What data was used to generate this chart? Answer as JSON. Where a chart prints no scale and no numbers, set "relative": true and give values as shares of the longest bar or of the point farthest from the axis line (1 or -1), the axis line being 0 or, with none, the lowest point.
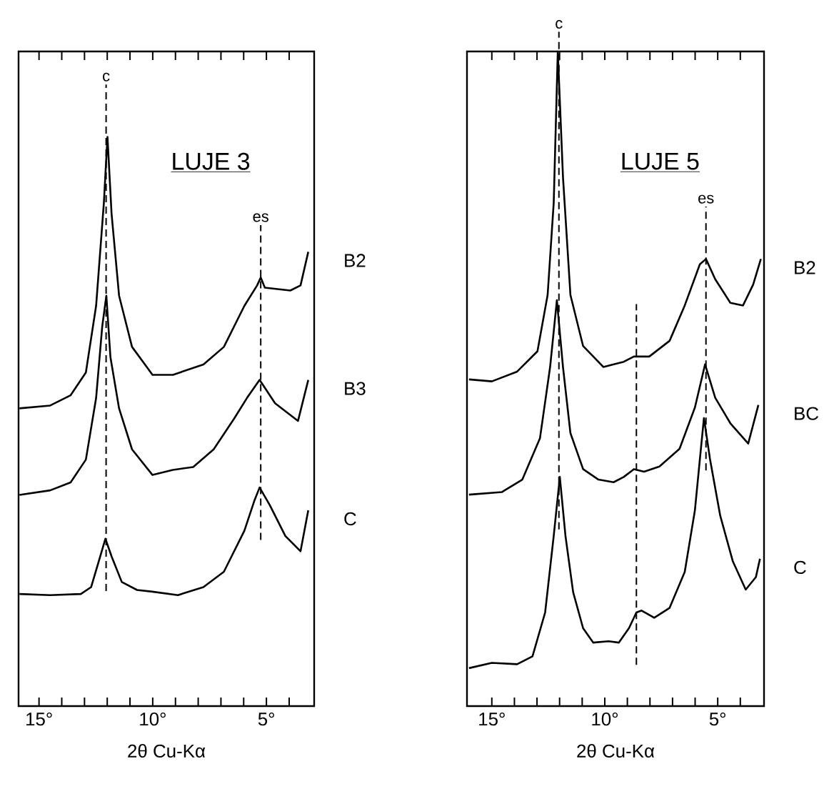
{
  "chart_data": [
    {
      "type": "line",
      "title": "LUJE 3",
      "xlabel": "2θ Cu-Kα",
      "relative": true,
      "tick_labels": "x",
      "xlim": [
        15.9,
        2.9
      ],
      "xticks": [
        {
          "value": 15,
          "label": "15°"
        },
        {
          "value": 14,
          "label": null
        },
        {
          "value": 13,
          "label": null
        },
        {
          "value": 12,
          "label": null
        },
        {
          "value": 11,
          "label": null
        },
        {
          "value": 10,
          "label": "10°"
        },
        {
          "value": 9,
          "label": null
        },
        {
          "value": 8,
          "label": null
        },
        {
          "value": 7,
          "label": null
        },
        {
          "value": 6,
          "label": null
        },
        {
          "value": 5,
          "label": "5°"
        },
        {
          "value": 4,
          "label": null
        }
      ],
      "ref_lines": [
        {
          "axis": "x",
          "value": 12.05,
          "label": "c",
          "line_style": "dashed"
        },
        {
          "axis": "x",
          "value": 5.25,
          "label": "es",
          "line_style": "dashed"
        }
      ],
      "series": [
        {
          "name": "B2",
          "color": "#000000",
          "x": [
            15.86,
            14.51,
            13.61,
            12.94,
            12.49,
            12.15,
            11.99,
            11.81,
            11.48,
            10.91,
            10.01,
            9.11,
            7.77,
            6.87,
            5.97,
            5.41,
            5.25,
            5.07,
            3.95,
            3.5,
            3.16
          ],
          "values": [
            0.523,
            0.528,
            0.546,
            0.586,
            0.703,
            0.883,
            1.0,
            0.865,
            0.721,
            0.631,
            0.582,
            0.582,
            0.6,
            0.631,
            0.703,
            0.739,
            0.753,
            0.735,
            0.73,
            0.739,
            0.798
          ]
        },
        {
          "name": "B3",
          "color": "#000000",
          "x": [
            15.86,
            14.51,
            13.61,
            12.94,
            12.49,
            12.22,
            12.04,
            11.86,
            11.48,
            10.91,
            10.01,
            9.11,
            8.22,
            7.32,
            6.42,
            5.86,
            5.3,
            4.62,
            3.61,
            3.16
          ],
          "values": [
            0.371,
            0.379,
            0.393,
            0.433,
            0.541,
            0.667,
            0.721,
            0.613,
            0.523,
            0.451,
            0.406,
            0.415,
            0.42,
            0.451,
            0.505,
            0.541,
            0.573,
            0.532,
            0.501,
            0.573
          ]
        },
        {
          "name": "C",
          "color": "#000000",
          "x": [
            15.86,
            14.51,
            13.16,
            12.71,
            12.31,
            12.08,
            11.81,
            11.36,
            10.69,
            10.02,
            8.89,
            7.77,
            6.87,
            5.97,
            5.52,
            5.3,
            4.85,
            4.17,
            3.5,
            3.16
          ],
          "values": [
            0.197,
            0.195,
            0.197,
            0.209,
            0.263,
            0.294,
            0.263,
            0.218,
            0.204,
            0.201,
            0.195,
            0.209,
            0.236,
            0.308,
            0.362,
            0.384,
            0.353,
            0.299,
            0.272,
            0.344
          ]
        }
      ]
    },
    {
      "type": "line",
      "title": "LUJE 5",
      "xlabel": "2θ Cu-Kα",
      "relative": true,
      "tick_labels": "x",
      "xlim": [
        16.1,
        2.95
      ],
      "xticks": [
        {
          "value": 15,
          "label": "15°"
        },
        {
          "value": 14,
          "label": null
        },
        {
          "value": 13,
          "label": null
        },
        {
          "value": 12,
          "label": null
        },
        {
          "value": 11,
          "label": null
        },
        {
          "value": 10,
          "label": "10°"
        },
        {
          "value": 9,
          "label": null
        },
        {
          "value": 8,
          "label": null
        },
        {
          "value": 7,
          "label": null
        },
        {
          "value": 6,
          "label": null
        },
        {
          "value": 5,
          "label": "5°"
        },
        {
          "value": 4,
          "label": null
        }
      ],
      "ref_lines": [
        {
          "axis": "x",
          "value": 12.03,
          "label": "c",
          "line_style": "dashed"
        },
        {
          "axis": "x",
          "value": 8.6,
          "label": null,
          "line_style": "dashed"
        },
        {
          "axis": "x",
          "value": 5.52,
          "label": "es",
          "line_style": "dashed"
        }
      ],
      "series": [
        {
          "name": "B2",
          "color": "#000000",
          "x": [
            16.01,
            15,
            13.88,
            12.98,
            12.53,
            12.26,
            12.08,
            11.85,
            11.52,
            10.96,
            10.06,
            9.16,
            8.71,
            8.03,
            7.13,
            6.46,
            5.79,
            5.52,
            5.11,
            4.44,
            3.88,
            3.43,
            3.09
          ],
          "values": [
            0.499,
            0.496,
            0.511,
            0.542,
            0.628,
            0.769,
            1.0,
            0.808,
            0.628,
            0.55,
            0.518,
            0.526,
            0.534,
            0.534,
            0.558,
            0.612,
            0.675,
            0.683,
            0.652,
            0.616,
            0.612,
            0.644,
            0.683
          ]
        },
        {
          "name": "BC",
          "color": "#000000",
          "x": [
            16.01,
            14.55,
            13.65,
            12.87,
            12.42,
            12.12,
            11.85,
            11.52,
            10.96,
            10.28,
            9.61,
            9.16,
            8.71,
            8.26,
            7.58,
            6.69,
            6.01,
            5.56,
            5.11,
            4.44,
            3.65,
            3.2
          ],
          "values": [
            0.323,
            0.327,
            0.346,
            0.409,
            0.518,
            0.62,
            0.518,
            0.417,
            0.362,
            0.346,
            0.342,
            0.35,
            0.362,
            0.358,
            0.366,
            0.393,
            0.456,
            0.522,
            0.471,
            0.432,
            0.401,
            0.46
          ]
        },
        {
          "name": "C",
          "color": "#000000",
          "x": [
            16.01,
            15,
            13.88,
            13.2,
            12.64,
            12.26,
            11.99,
            11.74,
            11.4,
            10.96,
            10.51,
            9.83,
            9.38,
            8.93,
            8.6,
            8.37,
            7.81,
            7.13,
            6.46,
            6.01,
            5.79,
            5.61,
            5.34,
            4.89,
            4.33,
            3.76,
            3.31,
            3.13
          ],
          "values": [
            0.058,
            0.066,
            0.064,
            0.076,
            0.143,
            0.26,
            0.35,
            0.26,
            0.174,
            0.119,
            0.097,
            0.099,
            0.097,
            0.119,
            0.143,
            0.146,
            0.135,
            0.15,
            0.205,
            0.299,
            0.377,
            0.44,
            0.377,
            0.291,
            0.221,
            0.178,
            0.197,
            0.225
          ]
        }
      ]
    }
  ]
}
